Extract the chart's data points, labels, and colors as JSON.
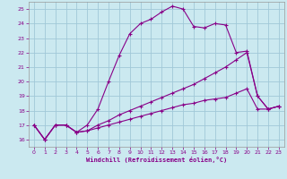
{
  "background_color": "#cbe9f0",
  "grid_color": "#a0c8d8",
  "line_color": "#880088",
  "xlabel": "Windchill (Refroidissement éolien,°C)",
  "xlim": [
    -0.5,
    23.5
  ],
  "ylim": [
    15.5,
    25.5
  ],
  "yticks": [
    16,
    17,
    18,
    19,
    20,
    21,
    22,
    23,
    24,
    25
  ],
  "xticks": [
    0,
    1,
    2,
    3,
    4,
    5,
    6,
    7,
    8,
    9,
    10,
    11,
    12,
    13,
    14,
    15,
    16,
    17,
    18,
    19,
    20,
    21,
    22,
    23
  ],
  "curve1_x": [
    0,
    1,
    2,
    3,
    4,
    5,
    6,
    7,
    8,
    9,
    10,
    11,
    12,
    13,
    14,
    15,
    16,
    17,
    18,
    19,
    20,
    21,
    22,
    23
  ],
  "curve1_y": [
    17.0,
    16.0,
    17.0,
    17.0,
    16.5,
    17.0,
    18.1,
    20.0,
    21.8,
    23.3,
    24.0,
    24.3,
    24.8,
    25.2,
    25.0,
    23.8,
    23.7,
    24.0,
    23.9,
    22.0,
    22.1,
    19.0,
    18.1,
    18.3
  ],
  "curve2_x": [
    0,
    1,
    2,
    3,
    4,
    5,
    6,
    7,
    8,
    9,
    10,
    11,
    12,
    13,
    14,
    15,
    16,
    17,
    18,
    19,
    20,
    21,
    22,
    23
  ],
  "curve2_y": [
    17.0,
    16.0,
    17.0,
    17.0,
    16.5,
    16.6,
    17.0,
    17.3,
    17.7,
    18.0,
    18.3,
    18.6,
    18.9,
    19.2,
    19.5,
    19.8,
    20.2,
    20.6,
    21.0,
    21.5,
    22.0,
    19.0,
    18.1,
    18.3
  ],
  "curve3_x": [
    0,
    1,
    2,
    3,
    4,
    5,
    6,
    7,
    8,
    9,
    10,
    11,
    12,
    13,
    14,
    15,
    16,
    17,
    18,
    19,
    20,
    21,
    22,
    23
  ],
  "curve3_y": [
    17.0,
    16.0,
    17.0,
    17.0,
    16.5,
    16.6,
    16.8,
    17.0,
    17.2,
    17.4,
    17.6,
    17.8,
    18.0,
    18.2,
    18.4,
    18.5,
    18.7,
    18.8,
    18.9,
    19.2,
    19.5,
    18.1,
    18.1,
    18.3
  ]
}
